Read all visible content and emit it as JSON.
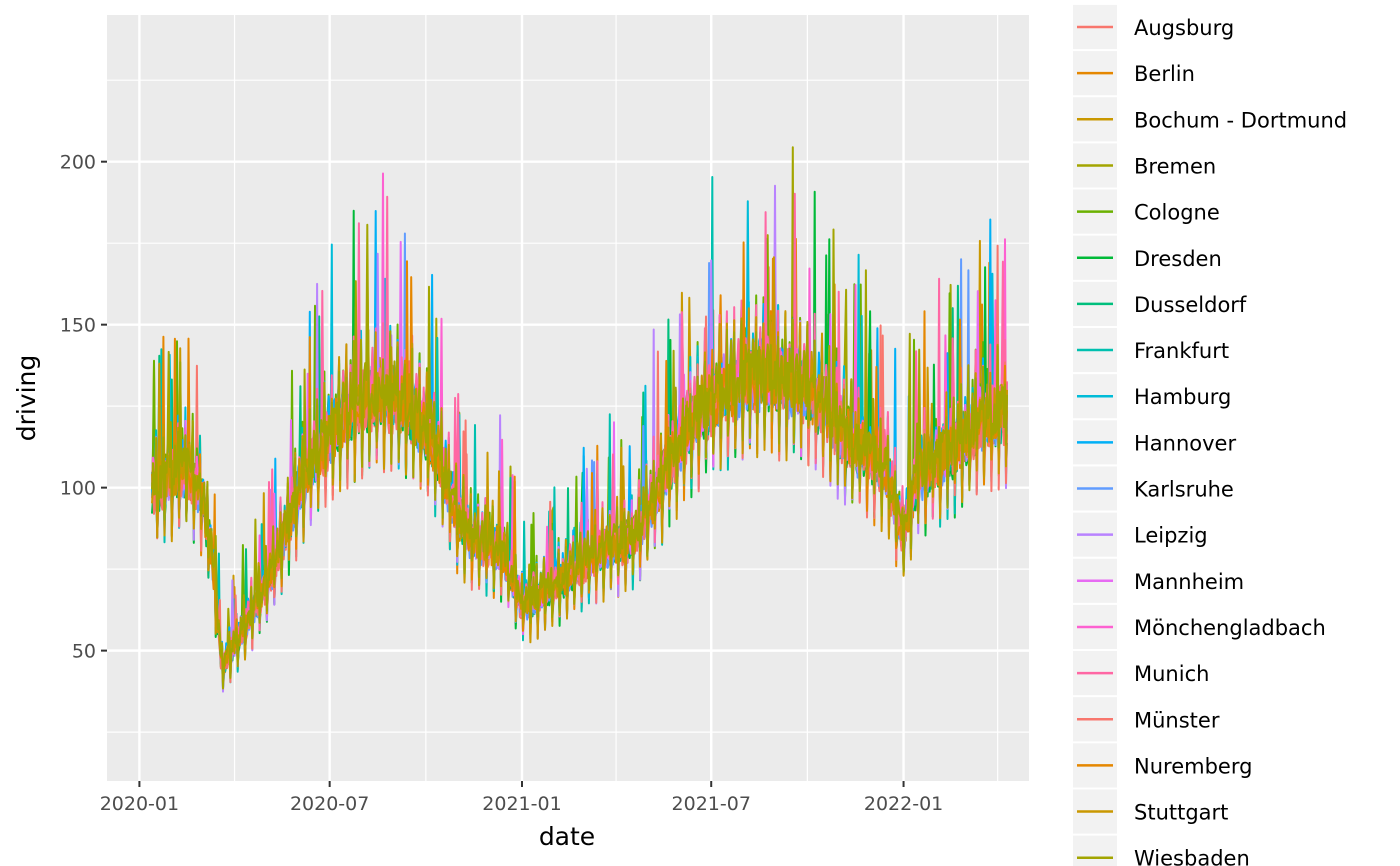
{
  "chart_data": {
    "type": "line",
    "xlabel": "date",
    "ylabel": "driving",
    "x_ticks": [
      "2020-01",
      "2020-07",
      "2021-01",
      "2021-07",
      "2022-01"
    ],
    "y_ticks": [
      50,
      100,
      150,
      200
    ],
    "xlim": [
      "2019-12-01",
      "2022-05-01"
    ],
    "ylim": [
      10,
      245
    ],
    "grid": true,
    "legend_position": "right",
    "background": "#ebebeb",
    "series": [
      {
        "name": "Augsburg",
        "color": "#F8766D"
      },
      {
        "name": "Berlin",
        "color": "#E58700"
      },
      {
        "name": "Bochum - Dortmund",
        "color": "#C99800"
      },
      {
        "name": "Bremen",
        "color": "#A3A500"
      },
      {
        "name": "Cologne",
        "color": "#6BB100"
      },
      {
        "name": "Dresden",
        "color": "#00BA38"
      },
      {
        "name": "Dusseldorf",
        "color": "#00BF7D"
      },
      {
        "name": "Frankfurt",
        "color": "#00C0AF"
      },
      {
        "name": "Hamburg",
        "color": "#00BCD8"
      },
      {
        "name": "Hannover",
        "color": "#00B0F6"
      },
      {
        "name": "Karlsruhe",
        "color": "#619CFF"
      },
      {
        "name": "Leipzig",
        "color": "#B983FF"
      },
      {
        "name": "Mannheim",
        "color": "#E76BF3"
      },
      {
        "name": "Mönchengladbach",
        "color": "#FD61D1"
      },
      {
        "name": "Munich",
        "color": "#FF67A4"
      },
      {
        "name": "Münster",
        "color": "#F8766D"
      },
      {
        "name": "Nuremberg",
        "color": "#E58700"
      },
      {
        "name": "Stuttgart",
        "color": "#C99800"
      },
      {
        "name": "Wiesbaden",
        "color": "#A3A500"
      }
    ],
    "profile": [
      [
        "2020-01-13",
        100
      ],
      [
        "2020-02-01",
        103
      ],
      [
        "2020-02-15",
        106
      ],
      [
        "2020-03-01",
        97
      ],
      [
        "2020-03-10",
        80
      ],
      [
        "2020-03-20",
        45
      ],
      [
        "2020-04-01",
        52
      ],
      [
        "2020-04-15",
        60
      ],
      [
        "2020-05-01",
        70
      ],
      [
        "2020-05-15",
        82
      ],
      [
        "2020-06-01",
        98
      ],
      [
        "2020-06-15",
        108
      ],
      [
        "2020-07-01",
        115
      ],
      [
        "2020-07-15",
        122
      ],
      [
        "2020-08-01",
        126
      ],
      [
        "2020-08-15",
        128
      ],
      [
        "2020-09-01",
        127
      ],
      [
        "2020-09-15",
        124
      ],
      [
        "2020-10-01",
        118
      ],
      [
        "2020-10-15",
        108
      ],
      [
        "2020-11-01",
        90
      ],
      [
        "2020-11-15",
        84
      ],
      [
        "2020-12-01",
        82
      ],
      [
        "2020-12-15",
        79
      ],
      [
        "2021-01-01",
        64
      ],
      [
        "2021-01-15",
        66
      ],
      [
        "2021-02-01",
        70
      ],
      [
        "2021-02-15",
        73
      ],
      [
        "2021-03-01",
        77
      ],
      [
        "2021-03-15",
        80
      ],
      [
        "2021-04-01",
        82
      ],
      [
        "2021-04-15",
        84
      ],
      [
        "2021-05-01",
        92
      ],
      [
        "2021-05-15",
        102
      ],
      [
        "2021-06-01",
        114
      ],
      [
        "2021-06-15",
        121
      ],
      [
        "2021-07-01",
        126
      ],
      [
        "2021-07-15",
        130
      ],
      [
        "2021-08-01",
        132
      ],
      [
        "2021-08-15",
        134
      ],
      [
        "2021-09-01",
        133
      ],
      [
        "2021-09-15",
        132
      ],
      [
        "2021-10-01",
        130
      ],
      [
        "2021-10-15",
        126
      ],
      [
        "2021-11-01",
        118
      ],
      [
        "2021-11-15",
        113
      ],
      [
        "2021-12-01",
        110
      ],
      [
        "2021-12-15",
        106
      ],
      [
        "2021-12-31",
        85
      ],
      [
        "2022-01-15",
        104
      ],
      [
        "2022-02-01",
        108
      ],
      [
        "2022-02-15",
        111
      ],
      [
        "2022-03-01",
        116
      ],
      [
        "2022-03-15",
        120
      ],
      [
        "2022-04-10",
        123
      ]
    ]
  }
}
